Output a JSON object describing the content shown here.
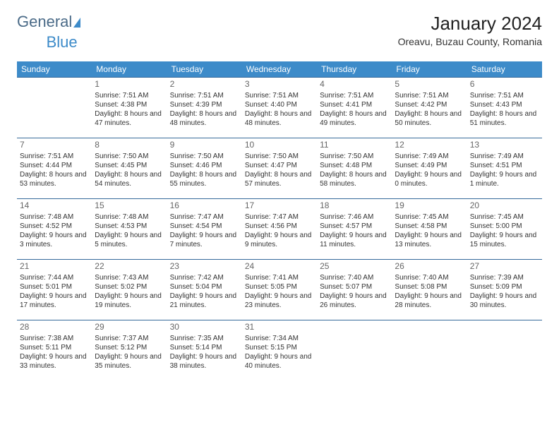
{
  "logo": {
    "part1": "General",
    "part2": "Blue"
  },
  "title": "January 2024",
  "location": "Oreavu, Buzau County, Romania",
  "colors": {
    "header_bg": "#3d8bc9",
    "header_text": "#ffffff",
    "row_border": "#356a9a",
    "body_text": "#333333",
    "daynum": "#666666",
    "background": "#ffffff"
  },
  "typography": {
    "title_fontsize": 26,
    "location_fontsize": 14,
    "header_fontsize": 12,
    "cell_fontsize": 10,
    "daynum_fontsize": 12
  },
  "layout": {
    "cols": 7,
    "rows": 5
  },
  "weekdays": [
    "Sunday",
    "Monday",
    "Tuesday",
    "Wednesday",
    "Thursday",
    "Friday",
    "Saturday"
  ],
  "weeks": [
    [
      null,
      {
        "n": "1",
        "sr": "7:51 AM",
        "ss": "4:38 PM",
        "dl": "8 hours and 47 minutes."
      },
      {
        "n": "2",
        "sr": "7:51 AM",
        "ss": "4:39 PM",
        "dl": "8 hours and 48 minutes."
      },
      {
        "n": "3",
        "sr": "7:51 AM",
        "ss": "4:40 PM",
        "dl": "8 hours and 48 minutes."
      },
      {
        "n": "4",
        "sr": "7:51 AM",
        "ss": "4:41 PM",
        "dl": "8 hours and 49 minutes."
      },
      {
        "n": "5",
        "sr": "7:51 AM",
        "ss": "4:42 PM",
        "dl": "8 hours and 50 minutes."
      },
      {
        "n": "6",
        "sr": "7:51 AM",
        "ss": "4:43 PM",
        "dl": "8 hours and 51 minutes."
      }
    ],
    [
      {
        "n": "7",
        "sr": "7:51 AM",
        "ss": "4:44 PM",
        "dl": "8 hours and 53 minutes."
      },
      {
        "n": "8",
        "sr": "7:50 AM",
        "ss": "4:45 PM",
        "dl": "8 hours and 54 minutes."
      },
      {
        "n": "9",
        "sr": "7:50 AM",
        "ss": "4:46 PM",
        "dl": "8 hours and 55 minutes."
      },
      {
        "n": "10",
        "sr": "7:50 AM",
        "ss": "4:47 PM",
        "dl": "8 hours and 57 minutes."
      },
      {
        "n": "11",
        "sr": "7:50 AM",
        "ss": "4:48 PM",
        "dl": "8 hours and 58 minutes."
      },
      {
        "n": "12",
        "sr": "7:49 AM",
        "ss": "4:49 PM",
        "dl": "9 hours and 0 minutes."
      },
      {
        "n": "13",
        "sr": "7:49 AM",
        "ss": "4:51 PM",
        "dl": "9 hours and 1 minute."
      }
    ],
    [
      {
        "n": "14",
        "sr": "7:48 AM",
        "ss": "4:52 PM",
        "dl": "9 hours and 3 minutes."
      },
      {
        "n": "15",
        "sr": "7:48 AM",
        "ss": "4:53 PM",
        "dl": "9 hours and 5 minutes."
      },
      {
        "n": "16",
        "sr": "7:47 AM",
        "ss": "4:54 PM",
        "dl": "9 hours and 7 minutes."
      },
      {
        "n": "17",
        "sr": "7:47 AM",
        "ss": "4:56 PM",
        "dl": "9 hours and 9 minutes."
      },
      {
        "n": "18",
        "sr": "7:46 AM",
        "ss": "4:57 PM",
        "dl": "9 hours and 11 minutes."
      },
      {
        "n": "19",
        "sr": "7:45 AM",
        "ss": "4:58 PM",
        "dl": "9 hours and 13 minutes."
      },
      {
        "n": "20",
        "sr": "7:45 AM",
        "ss": "5:00 PM",
        "dl": "9 hours and 15 minutes."
      }
    ],
    [
      {
        "n": "21",
        "sr": "7:44 AM",
        "ss": "5:01 PM",
        "dl": "9 hours and 17 minutes."
      },
      {
        "n": "22",
        "sr": "7:43 AM",
        "ss": "5:02 PM",
        "dl": "9 hours and 19 minutes."
      },
      {
        "n": "23",
        "sr": "7:42 AM",
        "ss": "5:04 PM",
        "dl": "9 hours and 21 minutes."
      },
      {
        "n": "24",
        "sr": "7:41 AM",
        "ss": "5:05 PM",
        "dl": "9 hours and 23 minutes."
      },
      {
        "n": "25",
        "sr": "7:40 AM",
        "ss": "5:07 PM",
        "dl": "9 hours and 26 minutes."
      },
      {
        "n": "26",
        "sr": "7:40 AM",
        "ss": "5:08 PM",
        "dl": "9 hours and 28 minutes."
      },
      {
        "n": "27",
        "sr": "7:39 AM",
        "ss": "5:09 PM",
        "dl": "9 hours and 30 minutes."
      }
    ],
    [
      {
        "n": "28",
        "sr": "7:38 AM",
        "ss": "5:11 PM",
        "dl": "9 hours and 33 minutes."
      },
      {
        "n": "29",
        "sr": "7:37 AM",
        "ss": "5:12 PM",
        "dl": "9 hours and 35 minutes."
      },
      {
        "n": "30",
        "sr": "7:35 AM",
        "ss": "5:14 PM",
        "dl": "9 hours and 38 minutes."
      },
      {
        "n": "31",
        "sr": "7:34 AM",
        "ss": "5:15 PM",
        "dl": "9 hours and 40 minutes."
      },
      null,
      null,
      null
    ]
  ],
  "labels": {
    "sunrise": "Sunrise:",
    "sunset": "Sunset:",
    "daylight": "Daylight:"
  }
}
